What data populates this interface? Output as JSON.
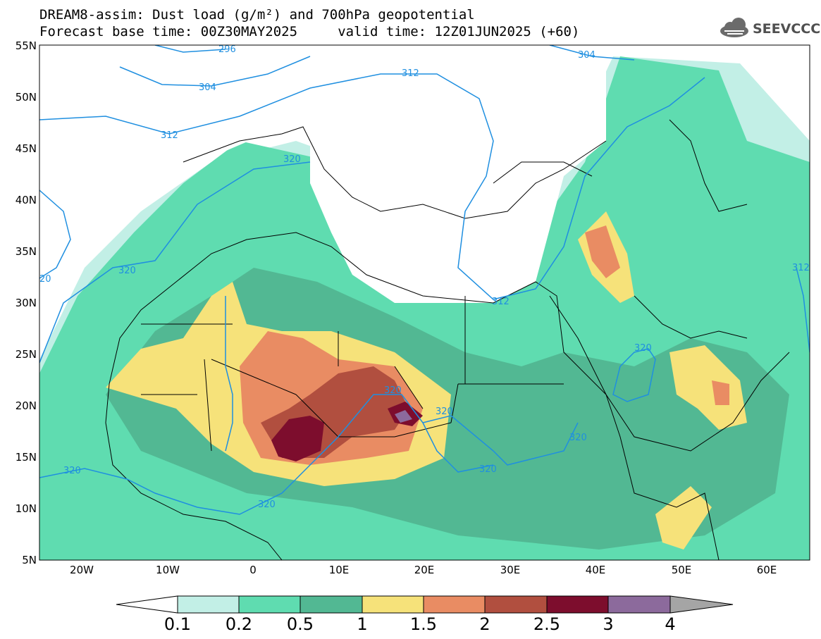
{
  "title": {
    "line1": "DREAM8-assim: Dust load (g/m²) and 700hPa geopotential",
    "line2": "Forecast base time: 00Z30MAY2025     valid time: 12Z01JUN2025 (+60)"
  },
  "logo": {
    "text": "SEEVCCC",
    "icon": "cloud-icon"
  },
  "axes": {
    "lat_labels": [
      "55N",
      "50N",
      "45N",
      "40N",
      "35N",
      "30N",
      "25N",
      "20N",
      "15N",
      "10N",
      "5N"
    ],
    "lat_values": [
      55,
      50,
      45,
      40,
      35,
      30,
      25,
      20,
      15,
      10,
      5
    ],
    "lon_labels": [
      "20W",
      "10W",
      "0",
      "10E",
      "20E",
      "30E",
      "40E",
      "50E",
      "60E"
    ],
    "lon_values": [
      -20,
      -10,
      0,
      10,
      20,
      30,
      40,
      50,
      60
    ],
    "lon_range": [
      -25,
      65
    ],
    "lat_range": [
      5,
      55
    ]
  },
  "contour_labels": [
    "296",
    "304",
    "312",
    "312",
    "304",
    "320",
    "320",
    "312",
    "320",
    "320",
    "320",
    "320",
    "320",
    "320",
    "320",
    "312",
    "20"
  ],
  "colorbar": {
    "labels": [
      "0.1",
      "0.2",
      "0.5",
      "1",
      "1.5",
      "2",
      "2.5",
      "3",
      "4"
    ],
    "colors": [
      "#ffffff",
      "#c2efe6",
      "#5fdcb0",
      "#52b893",
      "#f6e27a",
      "#e98c63",
      "#b14f3f",
      "#7d0d2d",
      "#8c6a9c",
      "#a5a5a5"
    ]
  }
}
